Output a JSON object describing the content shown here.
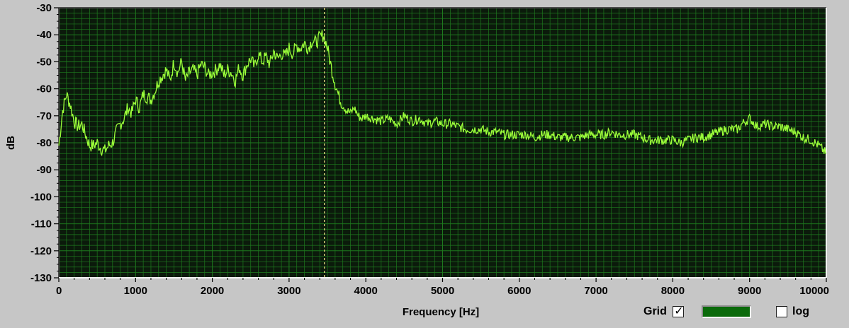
{
  "colors": {
    "plot_background": "#0b1a0b",
    "grid_line": "#1e7a1e",
    "trace": "#9cff3a",
    "cursor": "#f2e88a",
    "grid_swatch": "#0a6a0a"
  },
  "controls": {
    "grid_label": "Grid",
    "grid_checked": true,
    "log_label": "log",
    "log_checked": false
  },
  "chart_data": {
    "type": "line",
    "title": "",
    "xlabel": "Frequency [Hz]",
    "ylabel": "dB",
    "xlim": [
      0,
      10000
    ],
    "ylim": [
      -130,
      -30
    ],
    "x_scale": "linear",
    "grid": true,
    "x_ticks": [
      "0",
      "1000",
      "2000",
      "3000",
      "4000",
      "5000",
      "6000",
      "7000",
      "8000",
      "9000",
      "10000"
    ],
    "y_ticks": [
      "-30",
      "-40",
      "-50",
      "-60",
      "-70",
      "-80",
      "-90",
      "-100",
      "-110",
      "-120",
      "-130"
    ],
    "cursor_x": 3460,
    "series": [
      {
        "x": [
          0,
          50,
          100,
          150,
          200,
          250,
          300,
          350,
          400,
          450,
          500,
          550,
          600,
          650,
          700,
          750,
          800,
          850,
          900,
          950,
          1000,
          1050,
          1100,
          1150,
          1200,
          1250,
          1300,
          1350,
          1400,
          1450,
          1500,
          1550,
          1600,
          1650,
          1700,
          1750,
          1800,
          1850,
          1900,
          1950,
          2000,
          2050,
          2100,
          2150,
          2200,
          2250,
          2300,
          2350,
          2400,
          2450,
          2500,
          2550,
          2600,
          2650,
          2700,
          2750,
          2800,
          2850,
          2900,
          2950,
          3000,
          3050,
          3100,
          3150,
          3200,
          3250,
          3300,
          3350,
          3400,
          3450,
          3500,
          3550,
          3600,
          3650,
          3700,
          3750,
          3800,
          3850,
          3900,
          3950,
          4000,
          4100,
          4200,
          4300,
          4400,
          4500,
          4600,
          4700,
          4800,
          4900,
          5000,
          5100,
          5200,
          5300,
          5400,
          5500,
          5600,
          5700,
          5800,
          5900,
          6000,
          6100,
          6200,
          6300,
          6400,
          6500,
          6600,
          6700,
          6800,
          6900,
          7000,
          7100,
          7200,
          7300,
          7400,
          7500,
          7600,
          7700,
          7800,
          7900,
          8000,
          8100,
          8200,
          8300,
          8400,
          8500,
          8600,
          8700,
          8800,
          8850,
          8900,
          9000,
          9100,
          9200,
          9300,
          9400,
          9500,
          9600,
          9700,
          9800,
          9900,
          10000
        ],
        "y": [
          -81,
          -68,
          -62,
          -66,
          -72,
          -74,
          -73,
          -77,
          -81,
          -81,
          -80,
          -82,
          -83,
          -81,
          -80,
          -76,
          -73,
          -71,
          -67,
          -69,
          -64,
          -67,
          -62,
          -63,
          -64,
          -61,
          -57,
          -55,
          -53,
          -57,
          -50,
          -54,
          -50,
          -57,
          -54,
          -53,
          -55,
          -51,
          -52,
          -55,
          -54,
          -53,
          -51,
          -55,
          -53,
          -54,
          -57,
          -52,
          -55,
          -51,
          -49,
          -52,
          -47,
          -50,
          -48,
          -51,
          -46,
          -49,
          -47,
          -48,
          -45,
          -47,
          -44,
          -45,
          -43,
          -45,
          -42,
          -43,
          -41,
          -40,
          -45,
          -52,
          -58,
          -63,
          -66,
          -68,
          -69,
          -67,
          -70,
          -71,
          -70,
          -71,
          -72,
          -71,
          -73,
          -70,
          -72,
          -71,
          -73,
          -72,
          -73,
          -73,
          -74,
          -75,
          -75,
          -75,
          -76,
          -76,
          -77,
          -77,
          -77,
          -77,
          -78,
          -77,
          -77,
          -78,
          -78,
          -78,
          -78,
          -77,
          -77,
          -77,
          -76,
          -77,
          -77,
          -77,
          -78,
          -79,
          -79,
          -79,
          -79,
          -80,
          -79,
          -78,
          -78,
          -77,
          -76,
          -75,
          -75,
          -75,
          -73,
          -71,
          -74,
          -73,
          -74,
          -74,
          -75,
          -76,
          -78,
          -79,
          -81,
          -84
        ]
      }
    ]
  }
}
